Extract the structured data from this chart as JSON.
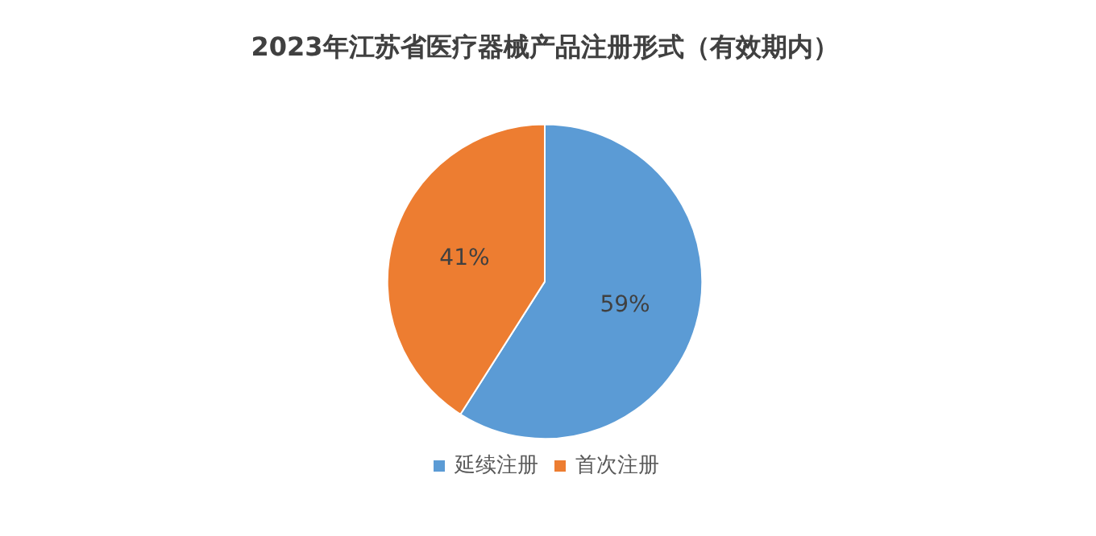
{
  "chart_data": {
    "type": "pie",
    "title": "2023年江苏省医疗器械产品注册形式（有效期内）",
    "categories": [
      "延续注册",
      "首次注册"
    ],
    "values": [
      59,
      41
    ],
    "colors": [
      "#5b9bd5",
      "#ed7d31"
    ],
    "value_labels": [
      "59%",
      "41%"
    ],
    "legend": "bottom"
  }
}
